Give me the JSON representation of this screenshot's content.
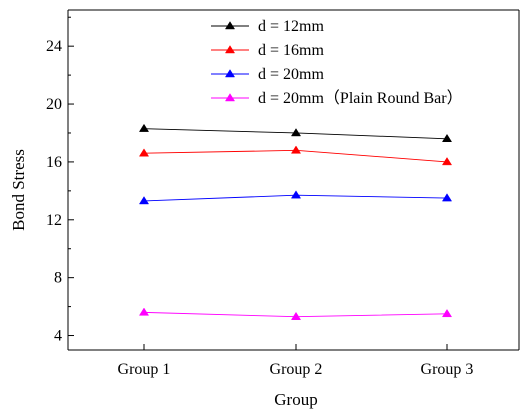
{
  "chart_data": {
    "type": "line",
    "categories": [
      "Group 1",
      "Group 2",
      "Group 3"
    ],
    "xlabel": "Group",
    "ylabel": "Bond Stress",
    "ylim": [
      3,
      26.5
    ],
    "yticks": [
      4,
      8,
      12,
      16,
      20,
      24
    ],
    "grid": false,
    "legend_position": "top",
    "series": [
      {
        "name": "d = 12mm",
        "color": "#000000",
        "marker": "triangle",
        "values": [
          18.3,
          18.0,
          17.6
        ]
      },
      {
        "name": "d = 16mm",
        "color": "#ff0000",
        "marker": "triangle",
        "values": [
          16.6,
          16.8,
          16.0
        ]
      },
      {
        "name": "d = 20mm",
        "color": "#0000ff",
        "marker": "triangle",
        "values": [
          13.3,
          13.7,
          13.5
        ]
      },
      {
        "name": "d = 20mm（Plain Round Bar）",
        "color": "#ff00ff",
        "marker": "triangle",
        "values": [
          5.6,
          5.3,
          5.5
        ]
      }
    ]
  }
}
